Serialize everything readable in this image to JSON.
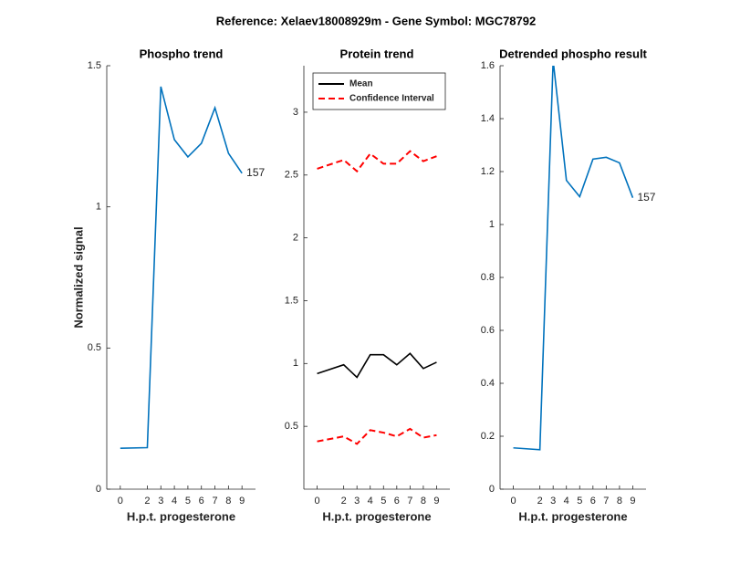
{
  "title": "Reference:  Xelaev18008929m - Gene Symbol:  MGC78792",
  "chart_data": [
    {
      "type": "line",
      "title": "Phospho trend",
      "xlabel": "H.p.t. progesterone",
      "ylabel": "Normalized signal",
      "x": [
        0,
        2,
        3,
        4,
        5,
        6,
        7,
        8,
        9
      ],
      "xlim": [
        -1,
        10
      ],
      "xticks": [
        0,
        2,
        3,
        4,
        5,
        6,
        7,
        8,
        9
      ],
      "ylim": [
        0,
        1.5
      ],
      "yticks": [
        0,
        0.5,
        1,
        1.5
      ],
      "series": [
        {
          "color": "#0072bd",
          "values": [
            0.145,
            0.147,
            1.426,
            1.238,
            1.177,
            1.225,
            1.351,
            1.19,
            1.119
          ]
        }
      ],
      "annotation": "157"
    },
    {
      "type": "band-line",
      "title": "Protein trend",
      "xlabel": "H.p.t. progesterone",
      "x": [
        0,
        2,
        3,
        4,
        5,
        6,
        7,
        8,
        9
      ],
      "xlim": [
        -1,
        10
      ],
      "xticks": [
        0,
        2,
        3,
        4,
        5,
        6,
        7,
        8,
        9
      ],
      "ylim": [
        0,
        3.37
      ],
      "yticks": [
        0.5,
        1,
        1.5,
        2,
        2.5,
        3
      ],
      "legend": "northwest",
      "series": [
        {
          "name": "Mean",
          "color": "#000000",
          "values": [
            0.92,
            0.99,
            0.89,
            1.07,
            1.07,
            0.99,
            1.08,
            0.96,
            1.01
          ]
        },
        {
          "name": "Confidence Interval",
          "color": "#ff0000",
          "dashed": true,
          "upper": [
            2.55,
            2.62,
            2.53,
            2.67,
            2.59,
            2.59,
            2.69,
            2.61,
            2.65
          ],
          "lower": [
            0.38,
            0.42,
            0.36,
            0.47,
            0.45,
            0.42,
            0.48,
            0.41,
            0.43
          ]
        }
      ]
    },
    {
      "type": "line",
      "title": "Detrended phospho result",
      "xlabel": "H.p.t. progesterone",
      "x": [
        0,
        2,
        3,
        4,
        5,
        6,
        7,
        8,
        9
      ],
      "xlim": [
        -1,
        10
      ],
      "xticks": [
        0,
        2,
        3,
        4,
        5,
        6,
        7,
        8,
        9
      ],
      "ylim": [
        0,
        1.6
      ],
      "yticks": [
        0,
        0.2,
        0.4,
        0.6,
        0.8,
        1,
        1.2,
        1.4,
        1.6
      ],
      "series": [
        {
          "color": "#0072bd",
          "values": [
            0.156,
            0.149,
            1.62,
            1.167,
            1.105,
            1.247,
            1.254,
            1.233,
            1.101
          ]
        }
      ],
      "annotation": "157"
    }
  ]
}
